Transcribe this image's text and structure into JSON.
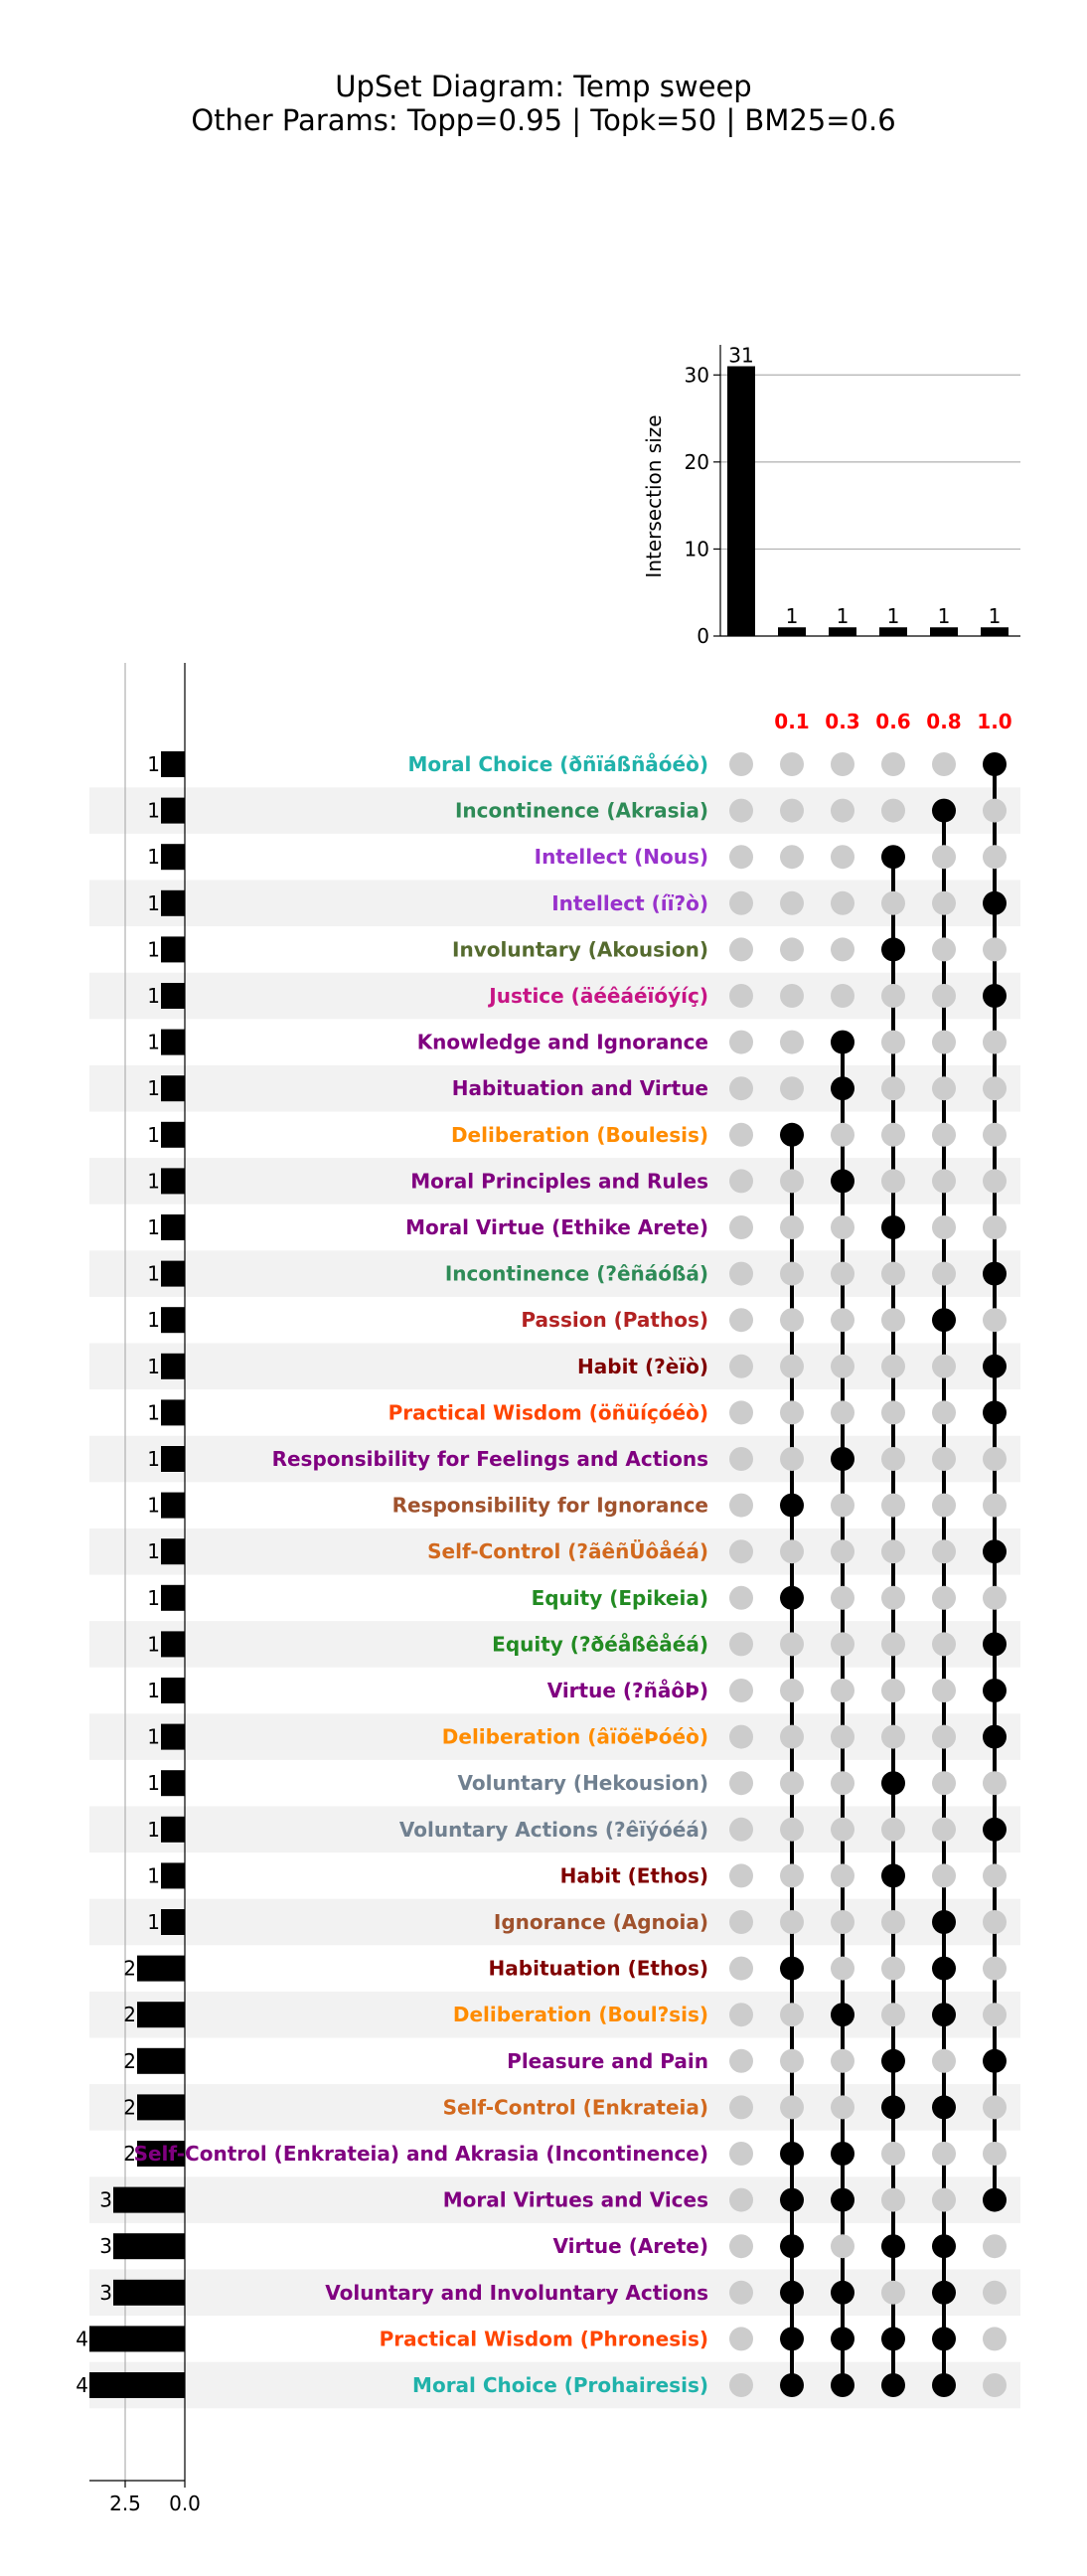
{
  "chart_data": {
    "type": "upset",
    "title": "UpSet Diagram: Temp sweep",
    "subtitle": "Other Params: Topp=0.95 | Topk=50 | BM25=0.6",
    "intersection_ylabel": "Intersection size",
    "intersection_yticks": [
      0,
      10,
      20,
      30
    ],
    "intersection_ylim": [
      0,
      33
    ],
    "setsize_xticks": [
      "2.5",
      "0.0"
    ],
    "setsize_xlim": [
      4,
      0
    ],
    "columns": [
      {
        "label": "0.1",
        "color": "#ff0000"
      },
      {
        "label": "0.3",
        "color": "#ff0000"
      },
      {
        "label": "0.6",
        "color": "#ff0000"
      },
      {
        "label": "0.8",
        "color": "#ff0000"
      },
      {
        "label": "1.0",
        "color": "#ff0000"
      }
    ],
    "intersections": [
      {
        "members": [],
        "size": 31
      },
      {
        "members": [
          0
        ],
        "size": 1
      },
      {
        "members": [
          0,
          1
        ],
        "size": 1
      },
      {
        "members": [
          0,
          2
        ],
        "size": 1
      },
      {
        "members": [
          0,
          3
        ],
        "size": 1
      },
      {
        "members": [
          0,
          4
        ],
        "size": 1
      }
    ],
    "sets": [
      {
        "name": "Moral Choice (ðñïáßñåóéò)",
        "size": 1,
        "color": "#20b2aa"
      },
      {
        "name": "Incontinence (Akrasia)",
        "size": 1,
        "color": "#2e8b57"
      },
      {
        "name": "Intellect (Nous)",
        "size": 1,
        "color": "#9932cc"
      },
      {
        "name": "Intellect (íï?ò)",
        "size": 1,
        "color": "#9932cc"
      },
      {
        "name": "Involuntary (Akousion)",
        "size": 1,
        "color": "#556b2f"
      },
      {
        "name": "Justice (äéêáéïóýíç)",
        "size": 1,
        "color": "#c71585"
      },
      {
        "name": "Knowledge and Ignorance",
        "size": 1,
        "color": "#800080"
      },
      {
        "name": "Habituation and Virtue",
        "size": 1,
        "color": "#800080"
      },
      {
        "name": "Deliberation (Boulesis)",
        "size": 1,
        "color": "#ff8c00"
      },
      {
        "name": "Moral Principles and Rules",
        "size": 1,
        "color": "#800080"
      },
      {
        "name": "Moral Virtue (Ethike Arete)",
        "size": 1,
        "color": "#800080"
      },
      {
        "name": "Incontinence (?êñáóßá)",
        "size": 1,
        "color": "#2e8b57"
      },
      {
        "name": "Passion (Pathos)",
        "size": 1,
        "color": "#b22222"
      },
      {
        "name": "Habit (?èïò)",
        "size": 1,
        "color": "#800000"
      },
      {
        "name": "Practical Wisdom (öñüíçóéò)",
        "size": 1,
        "color": "#ff4500"
      },
      {
        "name": "Responsibility for Feelings and Actions",
        "size": 1,
        "color": "#800080"
      },
      {
        "name": "Responsibility for Ignorance",
        "size": 1,
        "color": "#a0522d"
      },
      {
        "name": "Self-Control (?ãêñÜôåéá)",
        "size": 1,
        "color": "#d2691e"
      },
      {
        "name": "Equity (Epikeia)",
        "size": 1,
        "color": "#228b22"
      },
      {
        "name": "Equity (?ðéåßêåéá)",
        "size": 1,
        "color": "#228b22"
      },
      {
        "name": "Virtue (?ñåôÞ)",
        "size": 1,
        "color": "#800080"
      },
      {
        "name": "Deliberation (âïõëÞóéò)",
        "size": 1,
        "color": "#ff8c00"
      },
      {
        "name": "Voluntary (Hekousion)",
        "size": 1,
        "color": "#708090"
      },
      {
        "name": "Voluntary Actions (?êïýóéá)",
        "size": 1,
        "color": "#708090"
      },
      {
        "name": "Habit (Ethos)",
        "size": 1,
        "color": "#800000"
      },
      {
        "name": "Ignorance (Agnoia)",
        "size": 1,
        "color": "#a0522d"
      },
      {
        "name": "Habituation (Ethos)",
        "size": 2,
        "color": "#800000"
      },
      {
        "name": "Deliberation (Boul?sis)",
        "size": 2,
        "color": "#ff8c00"
      },
      {
        "name": "Pleasure and Pain",
        "size": 2,
        "color": "#800080"
      },
      {
        "name": "Self-Control (Enkrateia)",
        "size": 2,
        "color": "#d2691e"
      },
      {
        "name": "Self-Control (Enkrateia) and Akrasia (Incontinence)",
        "size": 2,
        "color": "#800080"
      },
      {
        "name": "Moral Virtues and Vices",
        "size": 3,
        "color": "#800080"
      },
      {
        "name": "Virtue (Arete)",
        "size": 3,
        "color": "#800080"
      },
      {
        "name": "Voluntary and Involuntary Actions",
        "size": 3,
        "color": "#800080"
      },
      {
        "name": "Practical Wisdom (Phronesis)",
        "size": 4,
        "color": "#ff4500"
      },
      {
        "name": "Moral Choice (Prohairesis)",
        "size": 4,
        "color": "#20b2aa"
      }
    ],
    "matrix": [
      [
        0,
        0,
        0,
        0,
        0,
        1
      ],
      [
        0,
        0,
        0,
        0,
        1,
        0
      ],
      [
        0,
        0,
        0,
        1,
        0,
        0
      ],
      [
        0,
        0,
        0,
        0,
        0,
        1
      ],
      [
        0,
        0,
        0,
        1,
        0,
        0
      ],
      [
        0,
        0,
        0,
        0,
        0,
        1
      ],
      [
        0,
        0,
        1,
        0,
        0,
        0
      ],
      [
        0,
        0,
        1,
        0,
        0,
        0
      ],
      [
        0,
        1,
        0,
        0,
        0,
        0
      ],
      [
        0,
        0,
        1,
        0,
        0,
        0
      ],
      [
        0,
        0,
        0,
        1,
        0,
        0
      ],
      [
        0,
        0,
        0,
        0,
        0,
        1
      ],
      [
        0,
        0,
        0,
        0,
        1,
        0
      ],
      [
        0,
        0,
        0,
        0,
        0,
        1
      ],
      [
        0,
        0,
        0,
        0,
        0,
        1
      ],
      [
        0,
        0,
        1,
        0,
        0,
        0
      ],
      [
        0,
        1,
        0,
        0,
        0,
        0
      ],
      [
        0,
        0,
        0,
        0,
        0,
        1
      ],
      [
        0,
        1,
        0,
        0,
        0,
        0
      ],
      [
        0,
        0,
        0,
        0,
        0,
        1
      ],
      [
        0,
        0,
        0,
        0,
        0,
        1
      ],
      [
        0,
        0,
        0,
        0,
        0,
        1
      ],
      [
        0,
        0,
        0,
        1,
        0,
        0
      ],
      [
        0,
        0,
        0,
        0,
        0,
        1
      ],
      [
        0,
        0,
        0,
        1,
        0,
        0
      ],
      [
        0,
        0,
        0,
        0,
        1,
        0
      ],
      [
        0,
        1,
        0,
        0,
        1,
        0
      ],
      [
        0,
        0,
        1,
        0,
        1,
        0
      ],
      [
        0,
        0,
        0,
        1,
        0,
        1
      ],
      [
        0,
        0,
        0,
        1,
        1,
        0
      ],
      [
        0,
        1,
        1,
        0,
        0,
        0
      ],
      [
        0,
        1,
        1,
        0,
        0,
        1
      ],
      [
        0,
        1,
        0,
        1,
        1,
        0
      ],
      [
        0,
        1,
        1,
        0,
        1,
        0
      ],
      [
        0,
        1,
        1,
        1,
        1,
        0
      ],
      [
        0,
        1,
        1,
        1,
        1,
        0
      ]
    ],
    "colors": {
      "bar": "#000000",
      "dot_active": "#000000",
      "dot_inactive": "#cccccc",
      "stripe": "#f2f2f2",
      "grid": "#b0b0b0"
    }
  }
}
